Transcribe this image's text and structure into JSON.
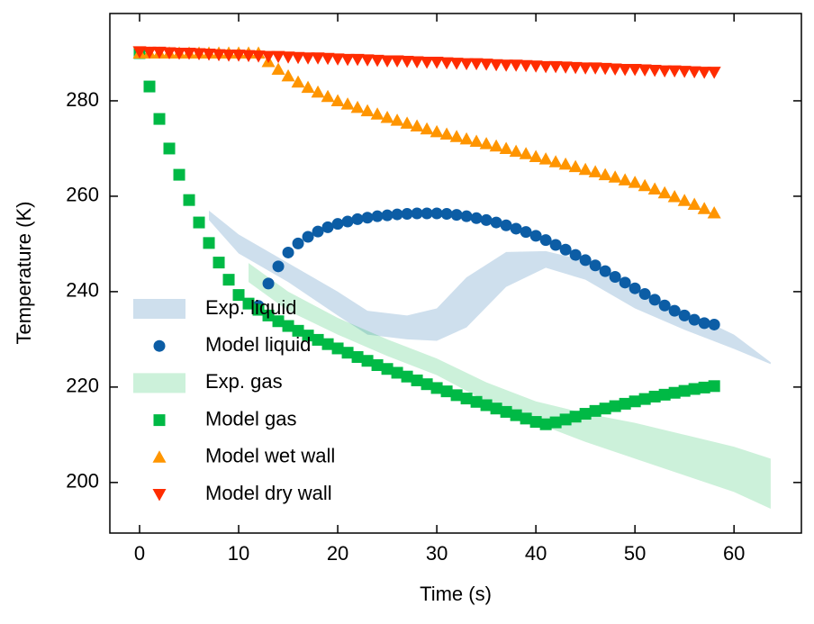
{
  "chart_data": {
    "type": "scatter",
    "xlabel": "Time (s)",
    "ylabel": "Temperature (K)",
    "xlim": [
      -3,
      66.8
    ],
    "ylim": [
      189.4,
      298.3
    ],
    "xticks": [
      0,
      10,
      20,
      30,
      40,
      50,
      60
    ],
    "yticks": [
      200,
      220,
      240,
      260,
      280
    ],
    "legend": "center left",
    "series": [
      {
        "name": "Exp. liquid",
        "kind": "band",
        "color": "#0C5DA5",
        "x": [
          7,
          10,
          15,
          20,
          23,
          27,
          30,
          33,
          37,
          41,
          45,
          50,
          55,
          60,
          63.7
        ],
        "upper": [
          257,
          252,
          246,
          240,
          236,
          235,
          236.5,
          243,
          248.3,
          248.5,
          246.5,
          241,
          236,
          231,
          225.2
        ],
        "lower": [
          255,
          248,
          242,
          235,
          231,
          230,
          229.7,
          232.5,
          241,
          245,
          242.5,
          236.5,
          232,
          228,
          224.8
        ]
      },
      {
        "name": "Model liquid",
        "kind": "marker",
        "marker": "circle",
        "color": "#0C5DA5",
        "x": [
          12,
          13,
          14,
          15,
          16,
          17,
          18,
          19,
          20,
          21,
          22,
          23,
          24,
          25,
          26,
          27,
          28,
          29,
          30,
          31,
          32,
          33,
          34,
          35,
          36,
          37,
          38,
          39,
          40,
          41,
          42,
          43,
          44,
          45,
          46,
          47,
          48,
          49,
          50,
          51,
          52,
          53,
          54,
          55,
          56,
          57,
          58
        ],
        "values": [
          237,
          241.7,
          245.3,
          248.2,
          250.1,
          251.5,
          252.6,
          253.5,
          254.2,
          254.7,
          255.2,
          255.5,
          255.8,
          256,
          256.2,
          256.3,
          256.4,
          256.4,
          256.4,
          256.3,
          256.1,
          255.8,
          255.4,
          255,
          254.5,
          253.9,
          253.2,
          252.5,
          251.7,
          250.8,
          249.8,
          248.8,
          247.7,
          246.6,
          245.5,
          244.3,
          243.1,
          241.9,
          240.7,
          239.5,
          238.3,
          237.1,
          236,
          235,
          234.1,
          233.4,
          233.1
        ]
      },
      {
        "name": "Exp. gas",
        "kind": "band",
        "color": "#00B945",
        "x": [
          11,
          15,
          20,
          25,
          30,
          35,
          40,
          45,
          50,
          55,
          60,
          63.7
        ],
        "upper": [
          246,
          240,
          234.5,
          230,
          226,
          221,
          217,
          214.5,
          212.5,
          210,
          207.5,
          205
        ],
        "lower": [
          242,
          236,
          231,
          226.5,
          222.5,
          217,
          212.5,
          208.5,
          205,
          201.5,
          198,
          194.5
        ]
      },
      {
        "name": "Model gas",
        "kind": "marker",
        "marker": "square",
        "color": "#00B945",
        "x": [
          0,
          1,
          2,
          3,
          4,
          5,
          6,
          7,
          8,
          9,
          10,
          11,
          12,
          13,
          14,
          15,
          16,
          17,
          18,
          19,
          20,
          21,
          22,
          23,
          24,
          25,
          26,
          27,
          28,
          29,
          30,
          31,
          32,
          33,
          34,
          35,
          36,
          37,
          38,
          39,
          40,
          41,
          42,
          43,
          44,
          45,
          46,
          47,
          48,
          49,
          50,
          51,
          52,
          53,
          54,
          55,
          56,
          57,
          58
        ],
        "values": [
          290,
          283,
          276.2,
          270,
          264.5,
          259.2,
          254.5,
          250.2,
          246.1,
          242.5,
          239.3,
          237.5,
          236.2,
          235,
          233.8,
          232.8,
          231.8,
          230.8,
          229.9,
          229,
          228.1,
          227.2,
          226.3,
          225.5,
          224.6,
          223.8,
          223,
          222.2,
          221.4,
          220.6,
          219.8,
          219.1,
          218.3,
          217.6,
          216.9,
          216.2,
          215.5,
          214.8,
          214.1,
          213.4,
          212.7,
          212.2,
          212.6,
          213.2,
          213.8,
          214.4,
          215,
          215.5,
          216,
          216.5,
          217,
          217.5,
          218,
          218.4,
          218.8,
          219.2,
          219.6,
          219.9,
          220.2
        ]
      },
      {
        "name": "Model wet wall",
        "kind": "marker",
        "marker": "triangle-up",
        "color": "#FF9500",
        "x": [
          0,
          1,
          2,
          3,
          4,
          5,
          6,
          7,
          8,
          9,
          10,
          11,
          12,
          13,
          14,
          15,
          16,
          17,
          18,
          19,
          20,
          21,
          22,
          23,
          24,
          25,
          26,
          27,
          28,
          29,
          30,
          31,
          32,
          33,
          34,
          35,
          36,
          37,
          38,
          39,
          40,
          41,
          42,
          43,
          44,
          45,
          46,
          47,
          48,
          49,
          50,
          51,
          52,
          53,
          54,
          55,
          56,
          57,
          58
        ],
        "values": [
          290,
          290,
          290,
          290,
          290,
          290,
          290,
          290,
          290,
          290,
          290,
          290,
          290,
          288.2,
          286.6,
          285.2,
          283.9,
          282.8,
          281.8,
          280.9,
          280,
          279.3,
          278.6,
          277.9,
          277.2,
          276.5,
          275.9,
          275.3,
          274.7,
          274.1,
          273.5,
          273,
          272.5,
          272,
          271.5,
          271,
          270.5,
          270,
          269.4,
          268.9,
          268.3,
          267.8,
          267.2,
          266.7,
          266.2,
          265.6,
          265.1,
          264.5,
          264,
          263.4,
          262.9,
          262.2,
          261.5,
          260.7,
          259.9,
          259.1,
          258.3,
          257.4,
          256.5
        ]
      },
      {
        "name": "Model dry wall",
        "kind": "marker",
        "marker": "triangle-down",
        "color": "#FF2C00",
        "x": [
          0,
          1,
          2,
          3,
          4,
          5,
          6,
          7,
          8,
          9,
          10,
          11,
          12,
          13,
          14,
          15,
          16,
          17,
          18,
          19,
          20,
          21,
          22,
          23,
          24,
          25,
          26,
          27,
          28,
          29,
          30,
          31,
          32,
          33,
          34,
          35,
          36,
          37,
          38,
          39,
          40,
          41,
          42,
          43,
          44,
          45,
          46,
          47,
          48,
          49,
          50,
          51,
          52,
          53,
          54,
          55,
          56,
          57,
          58
        ],
        "values": [
          290.3,
          290.2,
          290.2,
          290.1,
          290,
          290,
          289.9,
          289.8,
          289.7,
          289.6,
          289.6,
          289.5,
          289.4,
          289.3,
          289.3,
          289.2,
          289.1,
          289,
          289,
          288.9,
          288.8,
          288.7,
          288.7,
          288.6,
          288.5,
          288.4,
          288.4,
          288.3,
          288.2,
          288.1,
          288.1,
          288,
          287.9,
          287.8,
          287.8,
          287.7,
          287.6,
          287.5,
          287.5,
          287.4,
          287.3,
          287.2,
          287.2,
          287.1,
          287,
          286.9,
          286.9,
          286.8,
          286.7,
          286.6,
          286.6,
          286.5,
          286.4,
          286.3,
          286.3,
          286.2,
          286.1,
          286,
          286
        ]
      }
    ]
  }
}
